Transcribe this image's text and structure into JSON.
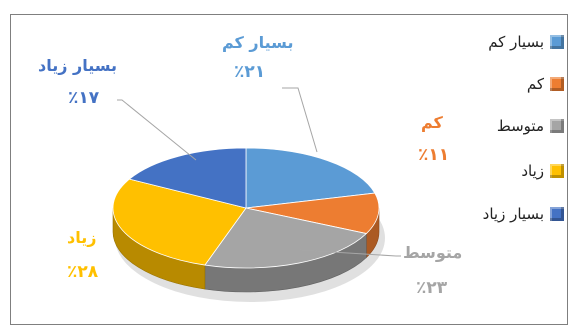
{
  "chart_data": {
    "type": "pie",
    "categories": [
      "بسیار کم",
      "کم",
      "متوسط",
      "زیاد",
      "بسیار زیاد"
    ],
    "values": [
      21,
      11,
      23,
      28,
      17
    ],
    "colors": [
      "#5b9bd5",
      "#ed7d31",
      "#a5a5a5",
      "#ffc000",
      "#4472c4"
    ],
    "data_labels": [
      {
        "name": "بسیار کم",
        "pct": "٪۲۱"
      },
      {
        "name": "کم",
        "pct": "٪۱۱"
      },
      {
        "name": "متوسط",
        "pct": "٪۲۳"
      },
      {
        "name": "زیاد",
        "pct": "٪۲۸"
      },
      {
        "name": "بسیار زیاد",
        "pct": "٪۱۷"
      }
    ],
    "legend": {
      "placement": "right",
      "items": [
        "بسیار کم",
        "کم",
        "متوسط",
        "زیاد",
        "بسیار زیاد"
      ]
    },
    "style": "3d"
  }
}
